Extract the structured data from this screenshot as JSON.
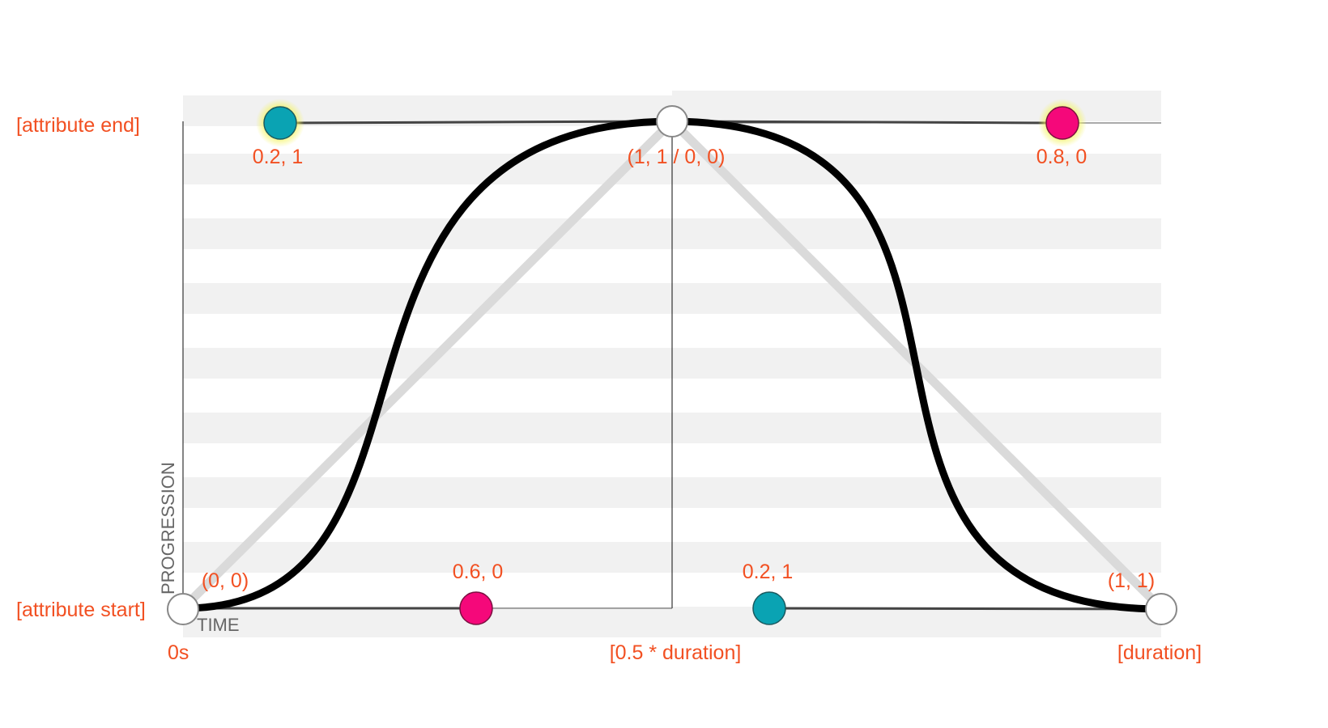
{
  "labels": {
    "attribute_end": "[attribute end]",
    "attribute_start": "[attribute start]",
    "time_start": "0s",
    "time_half": "[0.5 * duration]",
    "time_end": "[duration]",
    "axis_x": "TIME",
    "axis_y": "PROGRESSION"
  },
  "anchors": {
    "start": "(0, 0)",
    "peak": "(1, 1 / 0, 0)",
    "end": "(1, 1)"
  },
  "handles": {
    "first_cp1": "0.6, 0",
    "first_cp2": "0.2, 1",
    "second_cp1": "0.8, 0",
    "second_cp2": "0.2, 1"
  },
  "colors": {
    "label": "#f25022",
    "teal_handle": "#0aa3b3",
    "pink_handle": "#f5087a",
    "highlight_glow": "#f3f35a",
    "curve": "#000000",
    "linear_guide": "#d8d8d8",
    "band": "#f1f1f1"
  }
}
